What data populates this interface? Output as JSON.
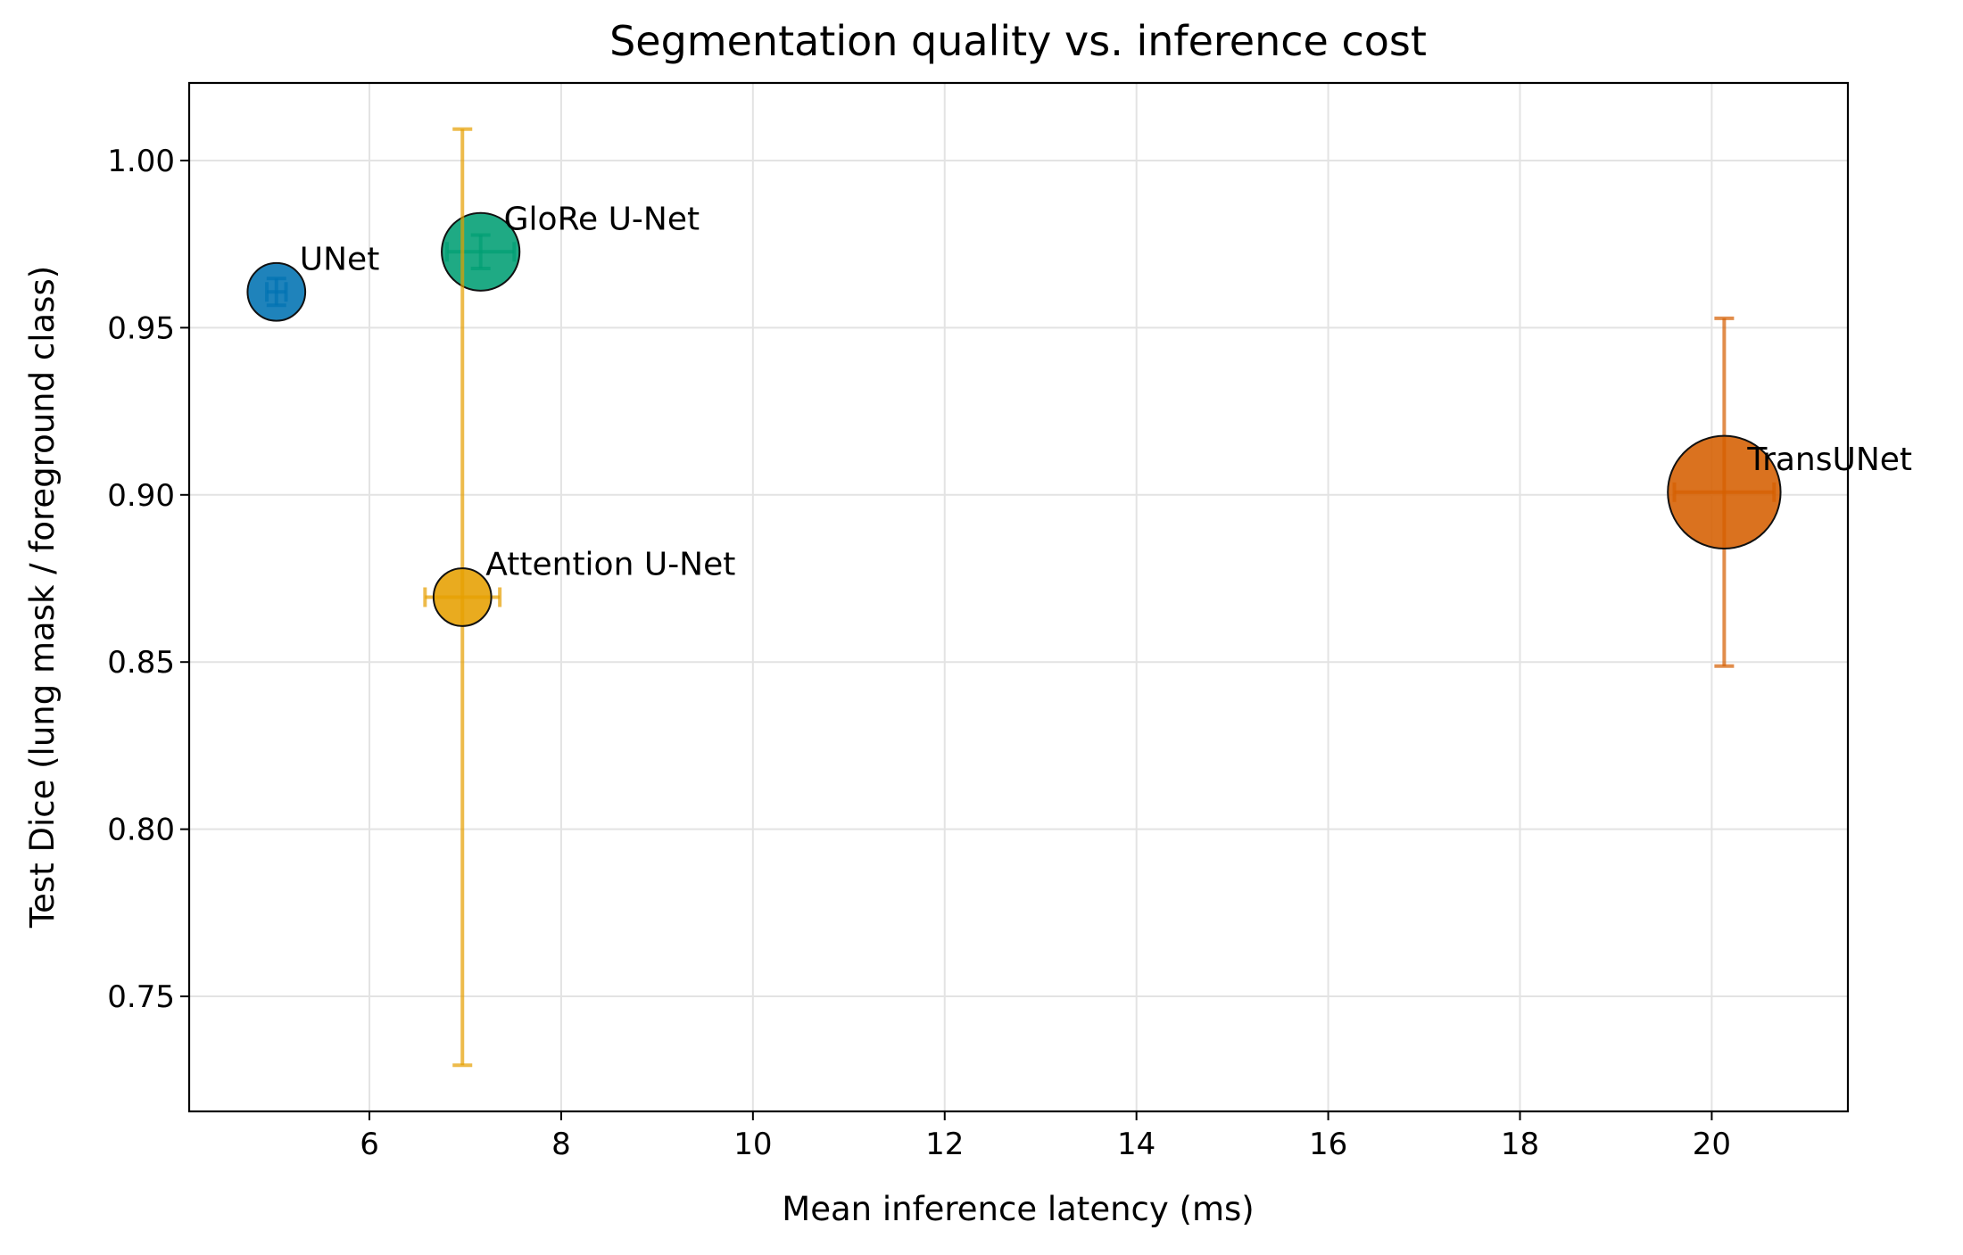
{
  "chart_data": {
    "type": "scatter",
    "title": "Segmentation quality vs. inference cost",
    "x_label": "Mean inference latency (ms)",
    "y_label": "Test Dice (lung mask / foreground class)",
    "points": [
      {
        "name": "UNet",
        "x": 5.03,
        "y": 0.9607,
        "xerr": 0.1,
        "yerr": 0.004,
        "size": 275,
        "color": "#0072B2"
      },
      {
        "name": "GloRe U-Net",
        "x": 7.16,
        "y": 0.9727,
        "xerr": 0.35,
        "yerr": 0.005,
        "size": 500,
        "color": "#009E73"
      },
      {
        "name": "Attention U-Net",
        "x": 6.97,
        "y": 0.8694,
        "xerr": 0.39,
        "yerr": 0.14,
        "size": 275,
        "color": "#E69F00"
      },
      {
        "name": "TransUNet",
        "x": 20.13,
        "y": 0.9008,
        "xerr": 0.52,
        "yerr": 0.052,
        "size": 1050,
        "color": "#D55E00"
      }
    ],
    "xlim": [
      4.12,
      21.42
    ],
    "ylim": [
      0.7156,
      1.0232
    ],
    "xticks": [
      6,
      8,
      10,
      12,
      14,
      16,
      18,
      20
    ],
    "yticks": [
      0.75,
      {
        "value": 0.8,
        "label": "0.80"
      },
      0.85,
      {
        "value": 0.9,
        "label": "0.90"
      },
      0.95,
      {
        "value": 1.0,
        "label": "1.00"
      }
    ],
    "grid": true
  }
}
